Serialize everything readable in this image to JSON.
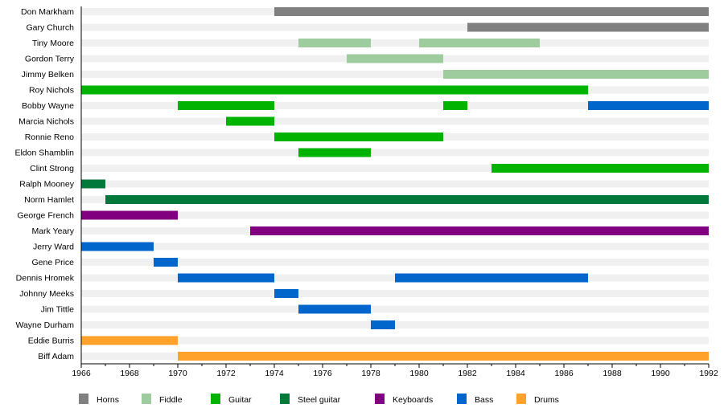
{
  "chart_data": {
    "type": "bar",
    "subtype": "timeline",
    "xlim": [
      1966,
      1992
    ],
    "x_ticks": [
      1966,
      1968,
      1970,
      1972,
      1974,
      1976,
      1978,
      1980,
      1982,
      1984,
      1986,
      1988,
      1990,
      1992
    ],
    "grid": false,
    "legend_position": "bottom",
    "categories_legend": [
      {
        "name": "Horns",
        "color": "#808080"
      },
      {
        "name": "Fiddle",
        "color": "#9fcc9f"
      },
      {
        "name": "Guitar",
        "color": "#00b300"
      },
      {
        "name": "Steel guitar",
        "color": "#00793a"
      },
      {
        "name": "Keyboards",
        "color": "#800080"
      },
      {
        "name": "Bass",
        "color": "#0066cc"
      },
      {
        "name": "Drums",
        "color": "#ffa22b"
      }
    ],
    "members": [
      {
        "name": "Don Markham",
        "spans": [
          {
            "role": "Horns",
            "start": 1974,
            "end": 1992
          }
        ]
      },
      {
        "name": "Gary Church",
        "spans": [
          {
            "role": "Horns",
            "start": 1982,
            "end": 1992
          }
        ]
      },
      {
        "name": "Tiny Moore",
        "spans": [
          {
            "role": "Fiddle",
            "start": 1975,
            "end": 1978
          },
          {
            "role": "Fiddle",
            "start": 1980,
            "end": 1985
          }
        ]
      },
      {
        "name": "Gordon Terry",
        "spans": [
          {
            "role": "Fiddle",
            "start": 1977,
            "end": 1981
          }
        ]
      },
      {
        "name": "Jimmy Belken",
        "spans": [
          {
            "role": "Fiddle",
            "start": 1981,
            "end": 1992
          }
        ]
      },
      {
        "name": "Roy Nichols",
        "spans": [
          {
            "role": "Guitar",
            "start": 1966,
            "end": 1987
          }
        ]
      },
      {
        "name": "Bobby Wayne",
        "spans": [
          {
            "role": "Guitar",
            "start": 1970,
            "end": 1974
          },
          {
            "role": "Guitar",
            "start": 1981,
            "end": 1982
          },
          {
            "role": "Bass",
            "start": 1987,
            "end": 1992
          }
        ]
      },
      {
        "name": "Marcia Nichols",
        "spans": [
          {
            "role": "Guitar",
            "start": 1972,
            "end": 1974
          }
        ]
      },
      {
        "name": "Ronnie Reno",
        "spans": [
          {
            "role": "Guitar",
            "start": 1974,
            "end": 1981
          }
        ]
      },
      {
        "name": "Eldon Shamblin",
        "spans": [
          {
            "role": "Guitar",
            "start": 1975,
            "end": 1978
          }
        ]
      },
      {
        "name": "Clint Strong",
        "spans": [
          {
            "role": "Guitar",
            "start": 1983,
            "end": 1992
          }
        ]
      },
      {
        "name": "Ralph Mooney",
        "spans": [
          {
            "role": "Steel guitar",
            "start": 1966,
            "end": 1967
          }
        ]
      },
      {
        "name": "Norm Hamlet",
        "spans": [
          {
            "role": "Steel guitar",
            "start": 1967,
            "end": 1992
          }
        ]
      },
      {
        "name": "George French",
        "spans": [
          {
            "role": "Keyboards",
            "start": 1966,
            "end": 1970
          }
        ]
      },
      {
        "name": "Mark Yeary",
        "spans": [
          {
            "role": "Keyboards",
            "start": 1973,
            "end": 1992
          }
        ]
      },
      {
        "name": "Jerry Ward",
        "spans": [
          {
            "role": "Bass",
            "start": 1966,
            "end": 1969
          }
        ]
      },
      {
        "name": "Gene Price",
        "spans": [
          {
            "role": "Bass",
            "start": 1969,
            "end": 1970
          }
        ]
      },
      {
        "name": "Dennis Hromek",
        "spans": [
          {
            "role": "Bass",
            "start": 1970,
            "end": 1974
          },
          {
            "role": "Bass",
            "start": 1979,
            "end": 1987
          }
        ]
      },
      {
        "name": "Johnny Meeks",
        "spans": [
          {
            "role": "Bass",
            "start": 1974,
            "end": 1975
          }
        ]
      },
      {
        "name": "Jim Tittle",
        "spans": [
          {
            "role": "Bass",
            "start": 1975,
            "end": 1978
          }
        ]
      },
      {
        "name": "Wayne Durham",
        "spans": [
          {
            "role": "Bass",
            "start": 1978,
            "end": 1979
          }
        ]
      },
      {
        "name": "Eddie Burris",
        "spans": [
          {
            "role": "Drums",
            "start": 1966,
            "end": 1970
          }
        ]
      },
      {
        "name": "Biff Adam",
        "spans": [
          {
            "role": "Drums",
            "start": 1970,
            "end": 1992
          }
        ]
      }
    ]
  }
}
